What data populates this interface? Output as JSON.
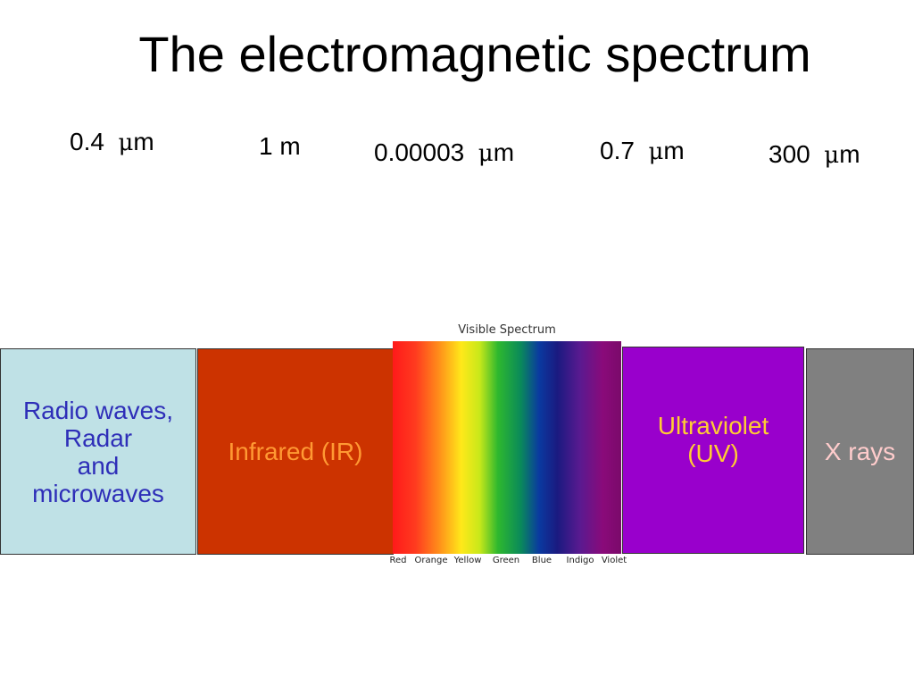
{
  "title": "The electromagnetic spectrum",
  "wavelengths": [
    {
      "value": "0.4",
      "unit_prefix": "μ",
      "unit": "m"
    },
    {
      "value": "1 m",
      "unit_prefix": "",
      "unit": ""
    },
    {
      "value": "0.00003",
      "unit_prefix": "μ",
      "unit": "m"
    },
    {
      "value": "0.7",
      "unit_prefix": "μ",
      "unit": "m"
    },
    {
      "value": "300",
      "unit_prefix": "μ",
      "unit": "m"
    }
  ],
  "bands": [
    {
      "label": "Radio waves,\nRadar\nand\n microwaves",
      "fill": "#bfe1e6",
      "text_color": "#2e2eb8"
    },
    {
      "label": "Infrared (IR)",
      "fill": "#cc3300",
      "text_color": "#ff9933"
    },
    {
      "label": "Ultraviolet\n(UV)",
      "fill": "#9900cc",
      "text_color": "#ffcc33"
    },
    {
      "label": "X rays",
      "fill": "#808080",
      "text_color": "#ffcccc"
    }
  ],
  "visible_spectrum": {
    "caption": "Visible Spectrum",
    "colors": [
      "Red",
      "Orange",
      "Yellow",
      "Green",
      "Blue",
      "Indigo",
      "Violet"
    ]
  }
}
